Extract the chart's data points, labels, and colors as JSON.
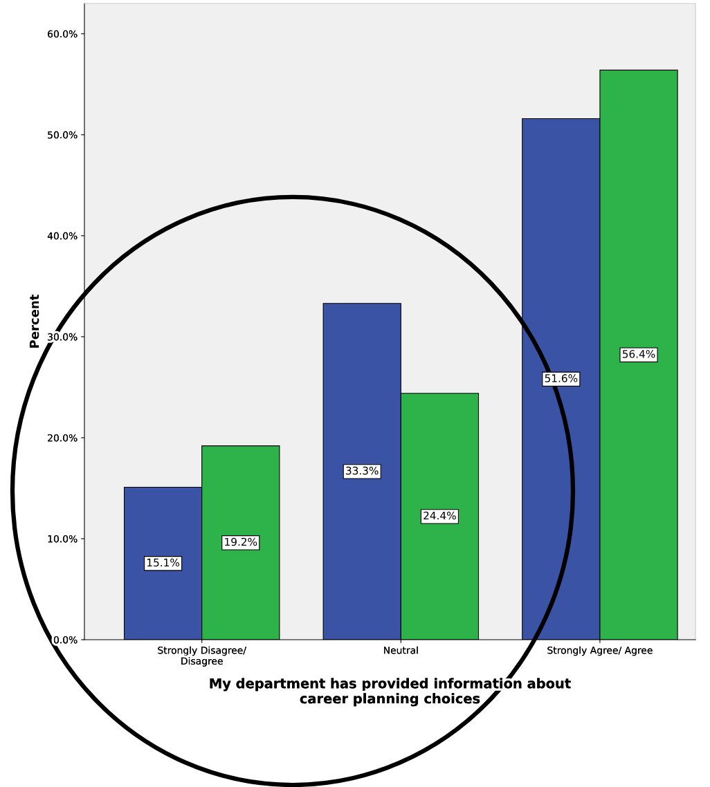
{
  "chart_data": {
    "type": "bar",
    "xlabel": "My department has provided information about\ncareer planning choices",
    "ylabel": "Percent",
    "categories": [
      "Strongly Disagree/\nDisagree",
      "Neutral",
      "Strongly Agree/ Agree"
    ],
    "series": [
      {
        "color": "#3b53a5",
        "values": [
          15.1,
          33.3,
          51.6
        ],
        "value_labels": [
          "15.1%",
          "33.3%",
          "51.6%"
        ]
      },
      {
        "color": "#2db34a",
        "values": [
          19.2,
          24.4,
          56.4
        ],
        "value_labels": [
          "19.2%",
          "24.4%",
          "56.4%"
        ]
      }
    ],
    "ylim": [
      0,
      63
    ],
    "yticks": [
      {
        "value": 0,
        "label": "0.0%"
      },
      {
        "value": 10,
        "label": "10.0%"
      },
      {
        "value": 20,
        "label": "20.0%"
      },
      {
        "value": 30,
        "label": "30.0%"
      },
      {
        "value": 40,
        "label": "40.0%"
      },
      {
        "value": 50,
        "label": "50.0%"
      },
      {
        "value": 60,
        "label": "60.0%"
      }
    ],
    "grid": false,
    "legend": false
  }
}
